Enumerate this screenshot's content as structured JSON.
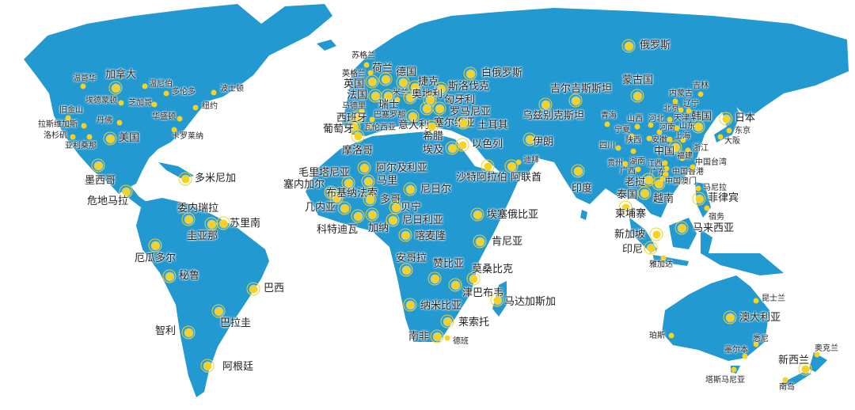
{
  "colors": {
    "land": "#2299d1",
    "marker": "#f7d21e",
    "ocean": "#ffffff"
  },
  "markers": [
    {
      "label": "加拿大",
      "kind": "country"
    },
    {
      "label": "温哥华",
      "kind": "city"
    },
    {
      "label": "温尼伯",
      "kind": "city"
    },
    {
      "label": "多伦多",
      "kind": "city"
    },
    {
      "label": "埃德蒙顿",
      "kind": "city"
    },
    {
      "label": "芝加哥",
      "kind": "city"
    },
    {
      "label": "波士顿",
      "kind": "city"
    },
    {
      "label": "纽约",
      "kind": "city"
    },
    {
      "label": "旧金山",
      "kind": "city"
    },
    {
      "label": "华盛顿",
      "kind": "city"
    },
    {
      "label": "拉斯维加斯",
      "kind": "city"
    },
    {
      "label": "丹佛",
      "kind": "city"
    },
    {
      "label": "卡罗莱纳",
      "kind": "city"
    },
    {
      "label": "洛杉矶",
      "kind": "city"
    },
    {
      "label": "亚利桑那",
      "kind": "city"
    },
    {
      "label": "美国",
      "kind": "country"
    },
    {
      "label": "墨西哥",
      "kind": "country"
    },
    {
      "label": "多米尼加",
      "kind": "country"
    },
    {
      "label": "危地马拉",
      "kind": "country"
    },
    {
      "label": "委内瑞拉",
      "kind": "country"
    },
    {
      "label": "圭亚那",
      "kind": "country"
    },
    {
      "label": "苏里南",
      "kind": "country"
    },
    {
      "label": "厄瓜多尔",
      "kind": "country"
    },
    {
      "label": "秘鲁",
      "kind": "country"
    },
    {
      "label": "巴西",
      "kind": "country"
    },
    {
      "label": "巴拉圭",
      "kind": "country"
    },
    {
      "label": "智利",
      "kind": "country"
    },
    {
      "label": "阿根廷",
      "kind": "country"
    },
    {
      "label": "苏格兰",
      "kind": "city"
    },
    {
      "label": "荷兰",
      "kind": "country"
    },
    {
      "label": "英格兰",
      "kind": "city"
    },
    {
      "label": "英国",
      "kind": "country"
    },
    {
      "label": "德国",
      "kind": "country"
    },
    {
      "label": "捷克",
      "kind": "country"
    },
    {
      "label": "斯洛伐克",
      "kind": "country"
    },
    {
      "label": "法国",
      "kind": "country"
    },
    {
      "label": "米兰",
      "kind": "city"
    },
    {
      "label": "奥地利",
      "kind": "country"
    },
    {
      "label": "匈牙利",
      "kind": "country"
    },
    {
      "label": "瑞士",
      "kind": "country"
    },
    {
      "label": "马德里",
      "kind": "city"
    },
    {
      "label": "西班牙",
      "kind": "country"
    },
    {
      "label": "巴塞罗那",
      "kind": "city"
    },
    {
      "label": "罗马尼亚",
      "kind": "country"
    },
    {
      "label": "塞尔维亚",
      "kind": "country"
    },
    {
      "label": "土耳其",
      "kind": "country"
    },
    {
      "label": "瓦伦西亚",
      "kind": "city"
    },
    {
      "label": "意大利",
      "kind": "country"
    },
    {
      "label": "葡萄牙",
      "kind": "country"
    },
    {
      "label": "希腊",
      "kind": "country"
    },
    {
      "label": "摩洛哥",
      "kind": "country"
    },
    {
      "label": "埃及",
      "kind": "country"
    },
    {
      "label": "以色列",
      "kind": "country"
    },
    {
      "label": "白俄罗斯",
      "kind": "country"
    },
    {
      "label": "俄罗斯",
      "kind": "country"
    },
    {
      "label": "蒙古国",
      "kind": "country"
    },
    {
      "label": "吉尔吉斯斯坦",
      "kind": "country"
    },
    {
      "label": "乌兹别克斯坦",
      "kind": "country"
    },
    {
      "label": "伊朗",
      "kind": "country"
    },
    {
      "label": "沙特阿拉伯",
      "kind": "country"
    },
    {
      "label": "阿联酋",
      "kind": "country"
    },
    {
      "label": "迪拜",
      "kind": "city"
    },
    {
      "label": "印度",
      "kind": "country"
    },
    {
      "label": "青海",
      "kind": "city"
    },
    {
      "label": "宁夏",
      "kind": "city"
    },
    {
      "label": "山西",
      "kind": "city"
    },
    {
      "label": "河北",
      "kind": "city"
    },
    {
      "label": "北京",
      "kind": "city"
    },
    {
      "label": "天津",
      "kind": "city"
    },
    {
      "label": "内蒙古",
      "kind": "city"
    },
    {
      "label": "辽宁",
      "kind": "city"
    },
    {
      "label": "吉林",
      "kind": "city"
    },
    {
      "label": "韩国",
      "kind": "country"
    },
    {
      "label": "日本",
      "kind": "country"
    },
    {
      "label": "东京",
      "kind": "city"
    },
    {
      "label": "大阪",
      "kind": "city"
    },
    {
      "label": "河南",
      "kind": "city"
    },
    {
      "label": "山东",
      "kind": "city"
    },
    {
      "label": "上海",
      "kind": "city"
    },
    {
      "label": "陕西",
      "kind": "city"
    },
    {
      "label": "安徽",
      "kind": "city"
    },
    {
      "label": "四川",
      "kind": "city"
    },
    {
      "label": "中国",
      "kind": "country"
    },
    {
      "label": "浙江",
      "kind": "city"
    },
    {
      "label": "福建",
      "kind": "city"
    },
    {
      "label": "湖南",
      "kind": "city"
    },
    {
      "label": "贵州",
      "kind": "city"
    },
    {
      "label": "江西",
      "kind": "city"
    },
    {
      "label": "广西",
      "kind": "city"
    },
    {
      "label": "广东",
      "kind": "city"
    },
    {
      "label": "中国香港",
      "kind": "city"
    },
    {
      "label": "中国台湾",
      "kind": "city"
    },
    {
      "label": "中国澳门",
      "kind": "city"
    },
    {
      "label": "老挝",
      "kind": "country"
    },
    {
      "label": "泰国",
      "kind": "country"
    },
    {
      "label": "越南",
      "kind": "country"
    },
    {
      "label": "柬埔寨",
      "kind": "country"
    },
    {
      "label": "马尼拉",
      "kind": "city"
    },
    {
      "label": "菲律宾",
      "kind": "country"
    },
    {
      "label": "宿务",
      "kind": "city"
    },
    {
      "label": "马来西亚",
      "kind": "country"
    },
    {
      "label": "新加坡",
      "kind": "country"
    },
    {
      "label": "印尼",
      "kind": "country"
    },
    {
      "label": "雅加达",
      "kind": "city"
    },
    {
      "label": "阿尔及利亚",
      "kind": "country"
    },
    {
      "label": "毛里塔尼亚",
      "kind": "country"
    },
    {
      "label": "马里",
      "kind": "country"
    },
    {
      "label": "塞内加尔",
      "kind": "country"
    },
    {
      "label": "布基纳法索",
      "kind": "country"
    },
    {
      "label": "尼日尔",
      "kind": "country"
    },
    {
      "label": "多哥",
      "kind": "country"
    },
    {
      "label": "几内亚",
      "kind": "country"
    },
    {
      "label": "贝宁",
      "kind": "country"
    },
    {
      "label": "科特迪瓦",
      "kind": "country"
    },
    {
      "label": "加纳",
      "kind": "country"
    },
    {
      "label": "尼日利亚",
      "kind": "country"
    },
    {
      "label": "喀麦隆",
      "kind": "country"
    },
    {
      "label": "埃塞俄比亚",
      "kind": "country"
    },
    {
      "label": "肯尼亚",
      "kind": "country"
    },
    {
      "label": "安哥拉",
      "kind": "country"
    },
    {
      "label": "赞比亚",
      "kind": "country"
    },
    {
      "label": "莫桑比克",
      "kind": "country"
    },
    {
      "label": "津巴布韦",
      "kind": "country"
    },
    {
      "label": "马达加斯加",
      "kind": "country"
    },
    {
      "label": "纳米比亚",
      "kind": "country"
    },
    {
      "label": "莱索托",
      "kind": "country"
    },
    {
      "label": "南非",
      "kind": "country"
    },
    {
      "label": "德班",
      "kind": "city"
    },
    {
      "label": "昆士兰",
      "kind": "city"
    },
    {
      "label": "澳大利亚",
      "kind": "country"
    },
    {
      "label": "珀斯",
      "kind": "city"
    },
    {
      "label": "悉尼",
      "kind": "city"
    },
    {
      "label": "墨尔本",
      "kind": "city"
    },
    {
      "label": "塔斯马尼亚",
      "kind": "city"
    },
    {
      "label": "新西兰",
      "kind": "country"
    },
    {
      "label": "奥克兰",
      "kind": "city"
    },
    {
      "label": "南岛",
      "kind": "city"
    }
  ]
}
